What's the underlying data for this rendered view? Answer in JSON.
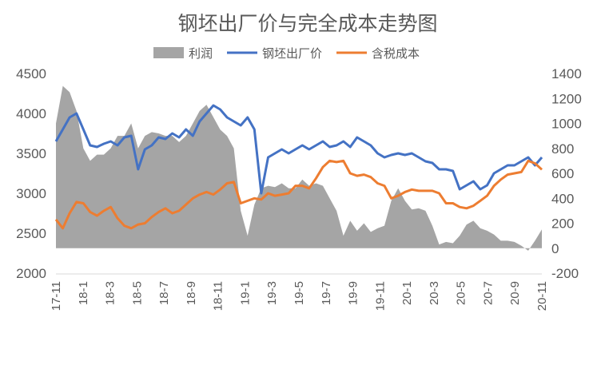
{
  "chart_data": {
    "type": "line",
    "title": "钢坯出厂价与完全成本走势图",
    "legend": {
      "position": "top",
      "items": [
        {
          "label": "利润",
          "color": "#a5a5a5",
          "shape": "area"
        },
        {
          "label": "钢坯出厂价",
          "color": "#4472c4",
          "shape": "line"
        },
        {
          "label": "含税成本",
          "color": "#ed7d31",
          "shape": "line"
        }
      ]
    },
    "y_left": {
      "min": 2000,
      "max": 4500,
      "ticks": [
        "2000",
        "2500",
        "3000",
        "3500",
        "4000",
        "4500"
      ]
    },
    "y_right": {
      "min": -200,
      "max": 1400,
      "ticks": [
        "-200",
        "0",
        "200",
        "400",
        "600",
        "800",
        "1000",
        "1200",
        "1400"
      ]
    },
    "x_tick_labels": [
      "17-11",
      "18-1",
      "18-3",
      "18-5",
      "18-7",
      "18-9",
      "18-11",
      "19-1",
      "19-3",
      "19-5",
      "19-7",
      "19-9",
      "19-11",
      "20-1",
      "20-3",
      "20-5",
      "20-7",
      "20-9",
      "20-11"
    ],
    "grid": false,
    "series": [
      {
        "name": "钢坯出厂价",
        "axis": "left",
        "color": "#4472c4",
        "values": [
          3650,
          3800,
          3950,
          4000,
          3800,
          3600,
          3580,
          3620,
          3650,
          3600,
          3700,
          3720,
          3300,
          3550,
          3600,
          3700,
          3680,
          3750,
          3700,
          3800,
          3720,
          3900,
          4000,
          4100,
          4050,
          3950,
          3900,
          3850,
          3950,
          3800,
          3000,
          3450,
          3500,
          3550,
          3500,
          3550,
          3600,
          3550,
          3600,
          3650,
          3580,
          3600,
          3650,
          3580,
          3700,
          3650,
          3600,
          3500,
          3450,
          3480,
          3500,
          3480,
          3500,
          3450,
          3400,
          3380,
          3300,
          3300,
          3280,
          3050,
          3100,
          3150,
          3050,
          3100,
          3250,
          3300,
          3350,
          3350,
          3400,
          3450,
          3350,
          3450
        ]
      },
      {
        "name": "含税成本",
        "axis": "right",
        "color": "#ed7d31",
        "values": [
          230,
          160,
          280,
          370,
          360,
          290,
          260,
          300,
          330,
          240,
          180,
          160,
          190,
          200,
          250,
          290,
          320,
          280,
          300,
          350,
          400,
          430,
          450,
          430,
          470,
          520,
          530,
          360,
          380,
          400,
          390,
          440,
          420,
          430,
          440,
          500,
          500,
          480,
          560,
          650,
          700,
          690,
          700,
          600,
          580,
          590,
          570,
          520,
          500,
          400,
          420,
          450,
          470,
          460,
          460,
          460,
          440,
          360,
          360,
          330,
          320,
          340,
          380,
          420,
          500,
          550,
          590,
          600,
          610,
          700,
          680,
          630
        ]
      },
      {
        "name": "利润",
        "axis": "right",
        "color": "#a5a5a5",
        "values": [
          1000,
          1300,
          1250,
          1100,
          800,
          700,
          750,
          750,
          800,
          900,
          900,
          1000,
          800,
          900,
          930,
          920,
          900,
          900,
          850,
          900,
          1000,
          1100,
          1150,
          1050,
          950,
          900,
          800,
          300,
          100,
          350,
          480,
          500,
          490,
          520,
          480,
          480,
          550,
          500,
          520,
          500,
          400,
          300,
          100,
          220,
          140,
          200,
          130,
          160,
          180,
          380,
          480,
          380,
          310,
          320,
          300,
          180,
          30,
          50,
          40,
          100,
          190,
          220,
          160,
          140,
          110,
          60,
          60,
          50,
          20,
          -20,
          60,
          150
        ]
      }
    ]
  }
}
